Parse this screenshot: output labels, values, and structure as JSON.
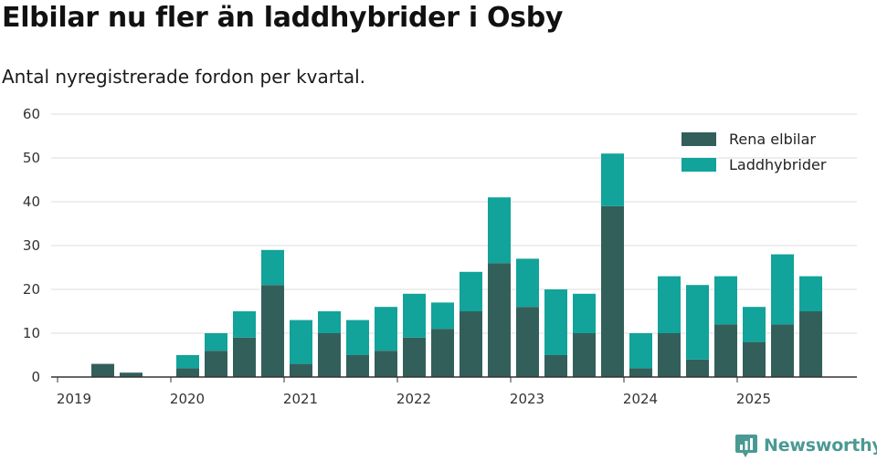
{
  "title": "Elbilar nu fler än laddhybrider i Osby",
  "subtitle": "Antal nyregistrerade fordon per kvartal.",
  "brand": {
    "name": "Newsworthy",
    "icon": "newsworthy-logo-icon"
  },
  "colors": {
    "electric": "#335f5b",
    "hybrid": "#12a39a",
    "grid": "#dddddd",
    "axis": "#333333"
  },
  "chart_data": {
    "type": "bar",
    "stacked": true,
    "title": "Elbilar nu fler än laddhybrider i Osby",
    "subtitle": "Antal nyregistrerade fordon per kvartal.",
    "xlabel": "",
    "ylabel": "",
    "ylim": [
      0,
      60
    ],
    "yticks": [
      0,
      10,
      20,
      30,
      40,
      50,
      60
    ],
    "xtick_labels": [
      "2019",
      "2020",
      "2021",
      "2022",
      "2023",
      "2024",
      "2025"
    ],
    "legend_position": "top-right",
    "grid": true,
    "categories": [
      "2019 Q1",
      "2019 Q2",
      "2019 Q3",
      "2019 Q4",
      "2020 Q1",
      "2020 Q2",
      "2020 Q3",
      "2020 Q4",
      "2021 Q1",
      "2021 Q2",
      "2021 Q3",
      "2021 Q4",
      "2022 Q1",
      "2022 Q2",
      "2022 Q3",
      "2022 Q4",
      "2023 Q1",
      "2023 Q2",
      "2023 Q3",
      "2023 Q4",
      "2024 Q1",
      "2024 Q2",
      "2024 Q3",
      "2024 Q4",
      "2025 Q1",
      "2025 Q2",
      "2025 Q3"
    ],
    "series": [
      {
        "name": "Rena elbilar",
        "color": "#335f5b",
        "values": [
          0,
          3,
          1,
          0,
          2,
          6,
          9,
          21,
          3,
          10,
          5,
          6,
          9,
          11,
          15,
          26,
          16,
          5,
          10,
          39,
          2,
          10,
          4,
          12,
          8,
          12,
          15
        ]
      },
      {
        "name": "Laddhybrider",
        "color": "#12a39a",
        "values": [
          0,
          0,
          0,
          0,
          3,
          4,
          6,
          8,
          10,
          5,
          8,
          10,
          10,
          6,
          9,
          15,
          11,
          15,
          9,
          12,
          8,
          13,
          17,
          11,
          8,
          16,
          8
        ]
      }
    ]
  }
}
